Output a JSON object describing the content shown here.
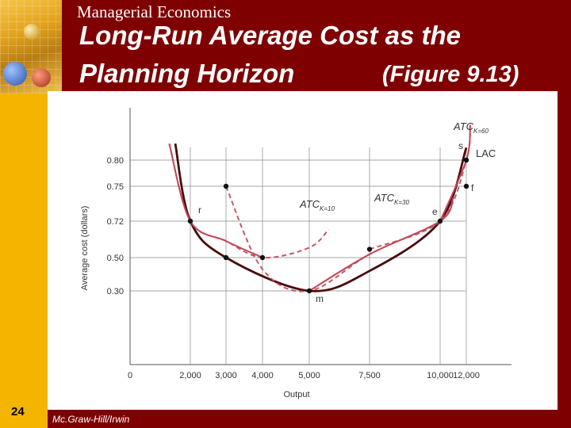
{
  "header": {
    "course": "Managerial Economics",
    "title_line1": "Long-Run Average Cost as the",
    "title_line2": "Planning Horizon",
    "figure_ref": "(Figure 9.13)"
  },
  "footer": {
    "slide_number": "24",
    "publisher": "Mc.Graw-Hill/Irwin"
  },
  "colors": {
    "background": "#7f0000",
    "left_strip": "#f4b400",
    "lac_curve": "#4a0c0c",
    "atc_curve": "#c0485a",
    "grid": "#888888"
  },
  "chart_data": {
    "type": "line",
    "xlabel": "Output",
    "ylabel": "Average cost (dollars)",
    "x_ticks": [
      {
        "value": 0,
        "label": "0"
      },
      {
        "value": 2000,
        "label": "2,000"
      },
      {
        "value": 3000,
        "label": "3,000"
      },
      {
        "value": 4000,
        "label": "4,000"
      },
      {
        "value": 5000,
        "label": "5,000"
      },
      {
        "value": 7500,
        "label": "7,500"
      },
      {
        "value": 10000,
        "label": "10,000"
      },
      {
        "value": 12000,
        "label": "12,000"
      }
    ],
    "y_ticks": [
      {
        "value": 0.8,
        "label": "0.80"
      },
      {
        "value": 0.75,
        "label": "0.75"
      },
      {
        "value": 0.72,
        "label": "0.72"
      },
      {
        "value": 0.5,
        "label": "0.50"
      },
      {
        "value": 0.3,
        "label": "0.30"
      }
    ],
    "grid": "guide lines at labeled points",
    "series": [
      {
        "name": "LAC",
        "style": "solid",
        "points": [
          [
            1500,
            0.88
          ],
          [
            2000,
            0.72
          ],
          [
            3000,
            0.5
          ],
          [
            5000,
            0.3
          ],
          [
            7500,
            0.42
          ],
          [
            10000,
            0.72
          ],
          [
            12000,
            0.86
          ]
        ]
      },
      {
        "name": "ATC_K=10",
        "label_main": "ATC",
        "label_sub": "K=10",
        "style": "solid-dashed",
        "points": [
          [
            1300,
            0.88
          ],
          [
            2000,
            0.72
          ],
          [
            3000,
            0.6
          ],
          [
            4000,
            0.5
          ],
          [
            5000,
            0.56
          ],
          [
            5800,
            0.67
          ]
        ]
      },
      {
        "name": "ATC_K=30",
        "label_main": "ATC",
        "label_sub": "K=30",
        "style": "dashed-solid",
        "points": [
          [
            3000,
            0.75
          ],
          [
            4000,
            0.43
          ],
          [
            5000,
            0.3
          ],
          [
            7500,
            0.52
          ],
          [
            10000,
            0.72
          ],
          [
            11000,
            0.74
          ]
        ]
      },
      {
        "name": "ATC_K=60",
        "label_main": "ATC",
        "label_sub": "K=60",
        "style": "dashed-solid",
        "points": [
          [
            7500,
            0.55
          ],
          [
            10000,
            0.72
          ],
          [
            12000,
            0.8
          ],
          [
            12300,
            0.97
          ]
        ]
      }
    ],
    "points": [
      {
        "label": "r",
        "x": 2000,
        "y": 0.72
      },
      {
        "label": "",
        "x": 3000,
        "y": 0.75
      },
      {
        "label": "",
        "x": 3000,
        "y": 0.5
      },
      {
        "label": "",
        "x": 4000,
        "y": 0.5
      },
      {
        "label": "m",
        "x": 5000,
        "y": 0.3
      },
      {
        "label": "",
        "x": 7500,
        "y": 0.55
      },
      {
        "label": "e",
        "x": 10000,
        "y": 0.72
      },
      {
        "label": "s",
        "x": 12000,
        "y": 0.8
      },
      {
        "label": "f",
        "x": 12000,
        "y": 0.75
      }
    ]
  }
}
